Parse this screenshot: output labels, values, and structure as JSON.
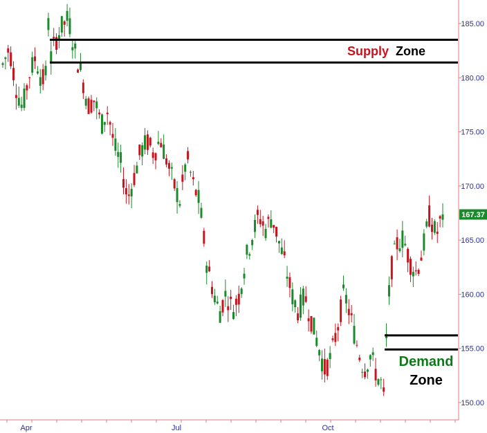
{
  "chart_data": {
    "type": "candlestick",
    "ylim": [
      149,
      187
    ],
    "y_ticks": [
      "150.00",
      "155.00",
      "160.00",
      "165.00",
      "170.00",
      "175.00",
      "180.00",
      "185.00"
    ],
    "x_ticks": [
      "Apr",
      "Jul",
      "Oct"
    ],
    "last_price_label": "167.37",
    "last_price": 167.37,
    "colors": {
      "up": "#1a8a2a",
      "down": "#c8141e",
      "axis": "#e07a80",
      "tick_text": "#2b2f8f",
      "price_tag": "#1a8a2a",
      "zone_line": "#000000",
      "supply_word": "#c8141e",
      "demand_word": "#0d7a1a"
    },
    "supply_zone": {
      "upper": 183.5,
      "lower": 181.4,
      "word1": "Supply",
      "word2": "Zone"
    },
    "demand_zone": {
      "upper": 156.2,
      "lower": 154.9,
      "word1": "Demand",
      "word2": "Zone"
    },
    "ohlc_sample": [
      [
        180.5,
        182.0,
        179.5,
        181.2
      ],
      [
        181.2,
        183.5,
        180.8,
        182.8
      ],
      [
        182.8,
        183.2,
        178.5,
        179.2
      ],
      [
        179.2,
        180.0,
        176.8,
        177.1
      ],
      [
        177.1,
        180.5,
        176.9,
        180.2
      ],
      [
        180.2,
        182.3,
        179.8,
        181.9
      ],
      [
        181.9,
        182.2,
        179.0,
        179.6
      ],
      [
        179.6,
        181.5,
        178.8,
        181.0
      ],
      [
        181.0,
        183.8,
        180.5,
        183.4
      ],
      [
        183.4,
        185.2,
        182.9,
        184.7
      ],
      [
        184.7,
        186.0,
        183.9,
        185.5
      ],
      [
        185.5,
        185.7,
        182.0,
        182.4
      ],
      [
        182.4,
        183.0,
        179.8,
        180.3
      ],
      [
        180.3,
        180.8,
        177.0,
        177.4
      ],
      [
        177.4,
        178.5,
        176.5,
        178.0
      ],
      [
        178.0,
        178.6,
        175.1,
        175.6
      ],
      [
        175.6,
        177.5,
        174.8,
        177.0
      ],
      [
        177.0,
        177.3,
        173.2,
        173.6
      ],
      [
        173.6,
        174.5,
        171.5,
        172.0
      ],
      [
        172.0,
        172.4,
        168.4,
        168.8
      ],
      [
        168.8,
        171.2,
        168.0,
        170.8
      ],
      [
        170.8,
        173.6,
        170.2,
        173.2
      ],
      [
        173.2,
        174.6,
        172.6,
        174.1
      ],
      [
        174.1,
        174.8,
        172.5,
        173.0
      ],
      [
        173.0,
        174.9,
        172.6,
        174.4
      ],
      [
        174.4,
        175.0,
        171.8,
        172.3
      ],
      [
        172.3,
        173.0,
        169.8,
        170.2
      ],
      [
        170.2,
        170.8,
        168.2,
        168.6
      ],
      [
        168.6,
        173.0,
        168.2,
        172.7
      ],
      [
        172.7,
        173.0,
        169.6,
        170.1
      ],
      [
        170.1,
        170.6,
        168.0,
        168.4
      ],
      [
        168.4,
        168.9,
        162.6,
        163.1
      ],
      [
        163.1,
        164.4,
        160.0,
        160.4
      ],
      [
        160.4,
        161.2,
        158.0,
        158.3
      ],
      [
        158.3,
        160.6,
        158.0,
        160.1
      ],
      [
        160.1,
        160.5,
        158.1,
        158.6
      ],
      [
        158.6,
        160.2,
        158.2,
        159.9
      ],
      [
        159.9,
        163.5,
        159.6,
        163.2
      ],
      [
        163.2,
        165.8,
        162.6,
        165.4
      ],
      [
        165.4,
        167.8,
        165.0,
        167.3
      ],
      [
        167.3,
        168.0,
        165.6,
        166.0
      ],
      [
        166.0,
        167.6,
        165.6,
        167.2
      ],
      [
        167.2,
        167.7,
        164.6,
        165.0
      ],
      [
        165.0,
        165.4,
        162.3,
        162.7
      ],
      [
        162.7,
        163.4,
        159.6,
        160.0
      ],
      [
        160.0,
        160.4,
        158.0,
        158.4
      ],
      [
        158.4,
        160.3,
        158.0,
        159.9
      ],
      [
        159.9,
        160.3,
        157.2,
        157.6
      ],
      [
        157.6,
        158.2,
        155.0,
        155.4
      ],
      [
        155.4,
        155.8,
        152.6,
        153.0
      ],
      [
        153.0,
        154.6,
        151.6,
        154.2
      ],
      [
        154.2,
        157.4,
        153.8,
        157.0
      ],
      [
        157.0,
        160.6,
        156.6,
        160.2
      ],
      [
        160.2,
        160.6,
        157.4,
        157.8
      ],
      [
        157.8,
        158.2,
        154.8,
        155.2
      ],
      [
        155.2,
        155.7,
        152.6,
        153.0
      ],
      [
        153.0,
        154.8,
        152.6,
        154.4
      ],
      [
        154.4,
        156.0,
        152.0,
        152.4
      ],
      [
        152.4,
        152.8,
        150.8,
        151.4
      ],
      [
        151.4,
        162.2,
        151.0,
        161.8
      ],
      [
        161.8,
        165.0,
        161.2,
        164.6
      ],
      [
        164.6,
        165.8,
        163.8,
        165.2
      ],
      [
        165.2,
        165.6,
        162.6,
        163.0
      ],
      [
        163.0,
        163.4,
        161.6,
        162.0
      ],
      [
        162.0,
        164.6,
        161.6,
        164.2
      ],
      [
        164.2,
        167.7,
        163.8,
        167.3
      ],
      [
        167.3,
        167.6,
        165.0,
        165.4
      ],
      [
        165.4,
        167.9,
        164.8,
        167.37
      ]
    ]
  }
}
